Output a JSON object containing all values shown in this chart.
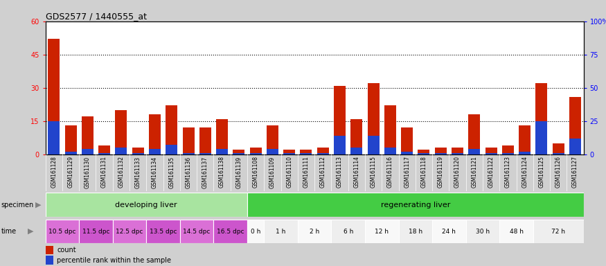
{
  "title": "GDS2577 / 1440555_at",
  "samples": [
    "GSM161128",
    "GSM161129",
    "GSM161130",
    "GSM161131",
    "GSM161132",
    "GSM161133",
    "GSM161134",
    "GSM161135",
    "GSM161136",
    "GSM161137",
    "GSM161138",
    "GSM161139",
    "GSM161108",
    "GSM161109",
    "GSM161110",
    "GSM161111",
    "GSM161112",
    "GSM161113",
    "GSM161114",
    "GSM161115",
    "GSM161116",
    "GSM161117",
    "GSM161118",
    "GSM161119",
    "GSM161120",
    "GSM161121",
    "GSM161122",
    "GSM161123",
    "GSM161124",
    "GSM161125",
    "GSM161126",
    "GSM161127"
  ],
  "red_values": [
    52,
    13,
    17,
    4,
    20,
    3,
    18,
    22,
    12,
    12,
    16,
    2,
    3,
    13,
    2,
    2,
    3,
    31,
    16,
    32,
    22,
    12,
    2,
    3,
    3,
    18,
    3,
    4,
    13,
    32,
    5,
    26
  ],
  "blue_values": [
    25,
    2,
    4,
    1,
    5,
    1,
    4,
    7,
    1,
    1,
    4,
    1,
    1,
    4,
    1,
    1,
    1,
    14,
    5,
    14,
    5,
    2,
    1,
    1,
    1,
    4,
    1,
    1,
    2,
    25,
    1,
    12
  ],
  "specimen_groups": [
    {
      "label": "developing liver",
      "start": 0,
      "end": 12,
      "color": "#a8e4a0"
    },
    {
      "label": "regenerating liver",
      "start": 12,
      "end": 32,
      "color": "#44cc44"
    }
  ],
  "time_groups": [
    {
      "label": "10.5 dpc",
      "start": 0,
      "end": 2,
      "color": "#da70d6"
    },
    {
      "label": "11.5 dpc",
      "start": 2,
      "end": 4,
      "color": "#cc55cc"
    },
    {
      "label": "12.5 dpc",
      "start": 4,
      "end": 6,
      "color": "#da70d6"
    },
    {
      "label": "13.5 dpc",
      "start": 6,
      "end": 8,
      "color": "#cc55cc"
    },
    {
      "label": "14.5 dpc",
      "start": 8,
      "end": 10,
      "color": "#da70d6"
    },
    {
      "label": "16.5 dpc",
      "start": 10,
      "end": 12,
      "color": "#cc55cc"
    },
    {
      "label": "0 h",
      "start": 12,
      "end": 13,
      "color": "#f8f8f8"
    },
    {
      "label": "1 h",
      "start": 13,
      "end": 15,
      "color": "#eeeeee"
    },
    {
      "label": "2 h",
      "start": 15,
      "end": 17,
      "color": "#f8f8f8"
    },
    {
      "label": "6 h",
      "start": 17,
      "end": 19,
      "color": "#eeeeee"
    },
    {
      "label": "12 h",
      "start": 19,
      "end": 21,
      "color": "#f8f8f8"
    },
    {
      "label": "18 h",
      "start": 21,
      "end": 23,
      "color": "#eeeeee"
    },
    {
      "label": "24 h",
      "start": 23,
      "end": 25,
      "color": "#f8f8f8"
    },
    {
      "label": "30 h",
      "start": 25,
      "end": 27,
      "color": "#eeeeee"
    },
    {
      "label": "48 h",
      "start": 27,
      "end": 29,
      "color": "#f8f8f8"
    },
    {
      "label": "72 h",
      "start": 29,
      "end": 32,
      "color": "#eeeeee"
    }
  ],
  "ylim_left": [
    0,
    60
  ],
  "ylim_right": [
    0,
    100
  ],
  "yticks_left": [
    0,
    15,
    30,
    45,
    60
  ],
  "yticks_right": [
    0,
    25,
    50,
    75,
    100
  ],
  "ytick_labels_right": [
    "0",
    "25",
    "50",
    "75",
    "100%"
  ],
  "bar_color_red": "#cc2200",
  "bar_color_blue": "#2244cc",
  "bg_gray": "#d0d0d0",
  "tick_area_color": "#c8c8c8"
}
